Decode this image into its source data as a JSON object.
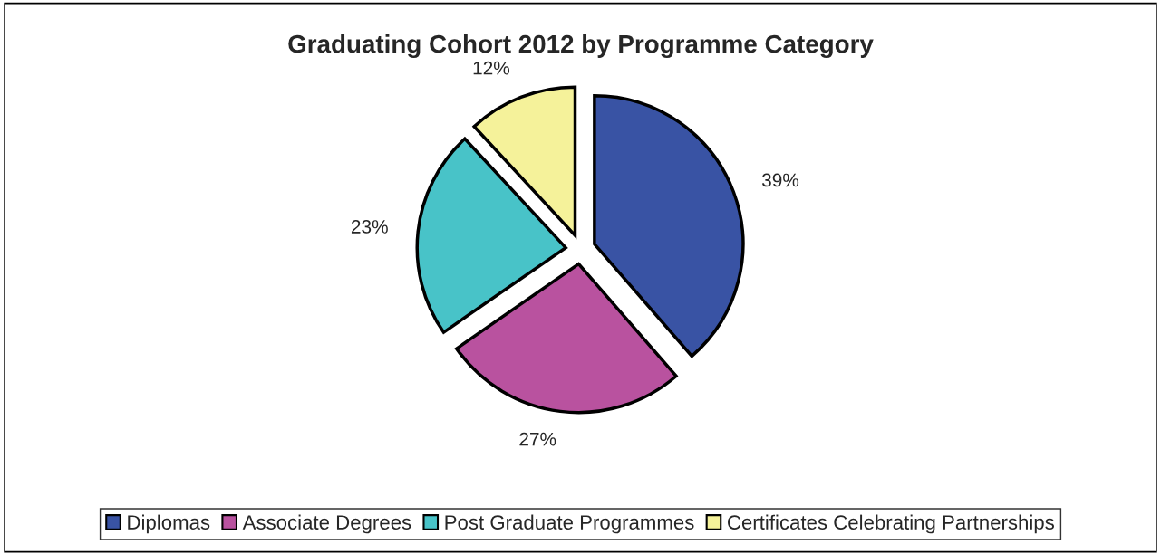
{
  "chart_data": {
    "type": "pie",
    "title": "Graduating Cohort 2012 by Programme Category",
    "categories": [
      "Diplomas",
      "Associate Degrees",
      "Post Graduate Programmes",
      "Certificates Celebrating Partnerships"
    ],
    "values": [
      39,
      27,
      23,
      12
    ],
    "value_labels": [
      "39%",
      "27%",
      "23%",
      "12%"
    ],
    "colors": [
      "#3953a4",
      "#b9529f",
      "#48c3c8",
      "#f5f29a"
    ],
    "legend": "bottom"
  }
}
